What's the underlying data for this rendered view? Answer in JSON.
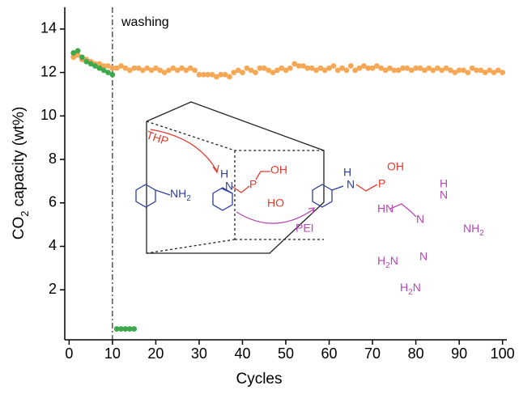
{
  "chart_data": {
    "type": "scatter",
    "x_label": "Cycles",
    "y_label": {
      "main": "CO",
      "sub": "2",
      "tail": " capacity (wt%)"
    },
    "xlim": [
      -1,
      101
    ],
    "xticks": [
      0,
      10,
      20,
      30,
      40,
      50,
      60,
      70,
      80,
      90,
      100
    ],
    "ylim": [
      -0.3,
      15
    ],
    "yticks": [
      2,
      4,
      6,
      8,
      10,
      12,
      14
    ],
    "annotation": {
      "text": "washing",
      "x": 10
    },
    "series": [
      {
        "color": "#f7a857",
        "x": [
          1,
          2,
          3,
          4,
          5,
          6,
          7,
          8,
          9,
          10,
          11,
          12,
          13,
          14,
          15,
          16,
          17,
          18,
          19,
          20,
          21,
          22,
          23,
          24,
          25,
          26,
          27,
          28,
          29,
          30,
          31,
          32,
          33,
          34,
          35,
          36,
          37,
          38,
          39,
          40,
          41,
          42,
          43,
          44,
          45,
          46,
          47,
          48,
          49,
          50,
          51,
          52,
          53,
          54,
          55,
          56,
          57,
          58,
          59,
          60,
          61,
          62,
          63,
          64,
          65,
          66,
          67,
          68,
          69,
          70,
          71,
          72,
          73,
          74,
          75,
          76,
          77,
          78,
          79,
          80,
          81,
          82,
          83,
          84,
          85,
          86,
          87,
          88,
          89,
          90,
          91,
          92,
          93,
          94,
          95,
          96,
          97,
          98,
          99,
          100
        ],
        "values": [
          12.7,
          12.8,
          12.6,
          12.6,
          12.5,
          12.4,
          12.4,
          12.3,
          12.3,
          12.2,
          12.2,
          12.3,
          12.2,
          12.1,
          12.2,
          12.2,
          12.1,
          12.2,
          12.1,
          12.2,
          12.1,
          12.0,
          12.1,
          12.2,
          12.1,
          12.2,
          12.1,
          12.2,
          12.1,
          11.9,
          11.9,
          11.9,
          11.9,
          11.8,
          11.9,
          11.9,
          11.8,
          12.0,
          12.1,
          12.0,
          12.2,
          12.1,
          12.0,
          12.2,
          12.2,
          12.1,
          12.0,
          12.1,
          12.2,
          12.1,
          12.2,
          12.4,
          12.3,
          12.3,
          12.2,
          12.2,
          12.1,
          12.2,
          12.1,
          12.2,
          12.3,
          12.1,
          12.2,
          12.1,
          12.3,
          12.1,
          12.2,
          12.3,
          12.2,
          12.2,
          12.3,
          12.2,
          12.1,
          12.2,
          12.1,
          12.1,
          12.2,
          12.2,
          12.1,
          12.2,
          12.2,
          12.1,
          12.2,
          12.1,
          12.2,
          12.1,
          12.2,
          12.1,
          12.0,
          12.1,
          12.1,
          12.0,
          12.2,
          12.1,
          12.1,
          12.0,
          12.1,
          12.0,
          12.1,
          12.0
        ]
      },
      {
        "color": "#3fa84c",
        "x": [
          1,
          2,
          3,
          4,
          5,
          6,
          7,
          8,
          9,
          10,
          11,
          12,
          13,
          14,
          15
        ],
        "values": [
          12.9,
          13.0,
          12.7,
          12.5,
          12.4,
          12.3,
          12.2,
          12.1,
          12.0,
          11.9,
          0.2,
          0.2,
          0.2,
          0.2,
          0.2
        ]
      }
    ]
  },
  "inset": {
    "reagent": "THP",
    "polymer": "PEI",
    "labels": [
      {
        "main": "NH",
        "sub": "2"
      },
      "H",
      "N",
      "P",
      "OH",
      "HO",
      "H",
      "N",
      "P",
      "OH",
      "HN",
      "N",
      "H",
      "N",
      {
        "main": "NH",
        "sub": "2"
      },
      "N",
      {
        "pre": "H",
        "sub": "2",
        "tail": "N"
      },
      {
        "pre": "H",
        "sub": "2",
        "tail": "N"
      }
    ]
  }
}
